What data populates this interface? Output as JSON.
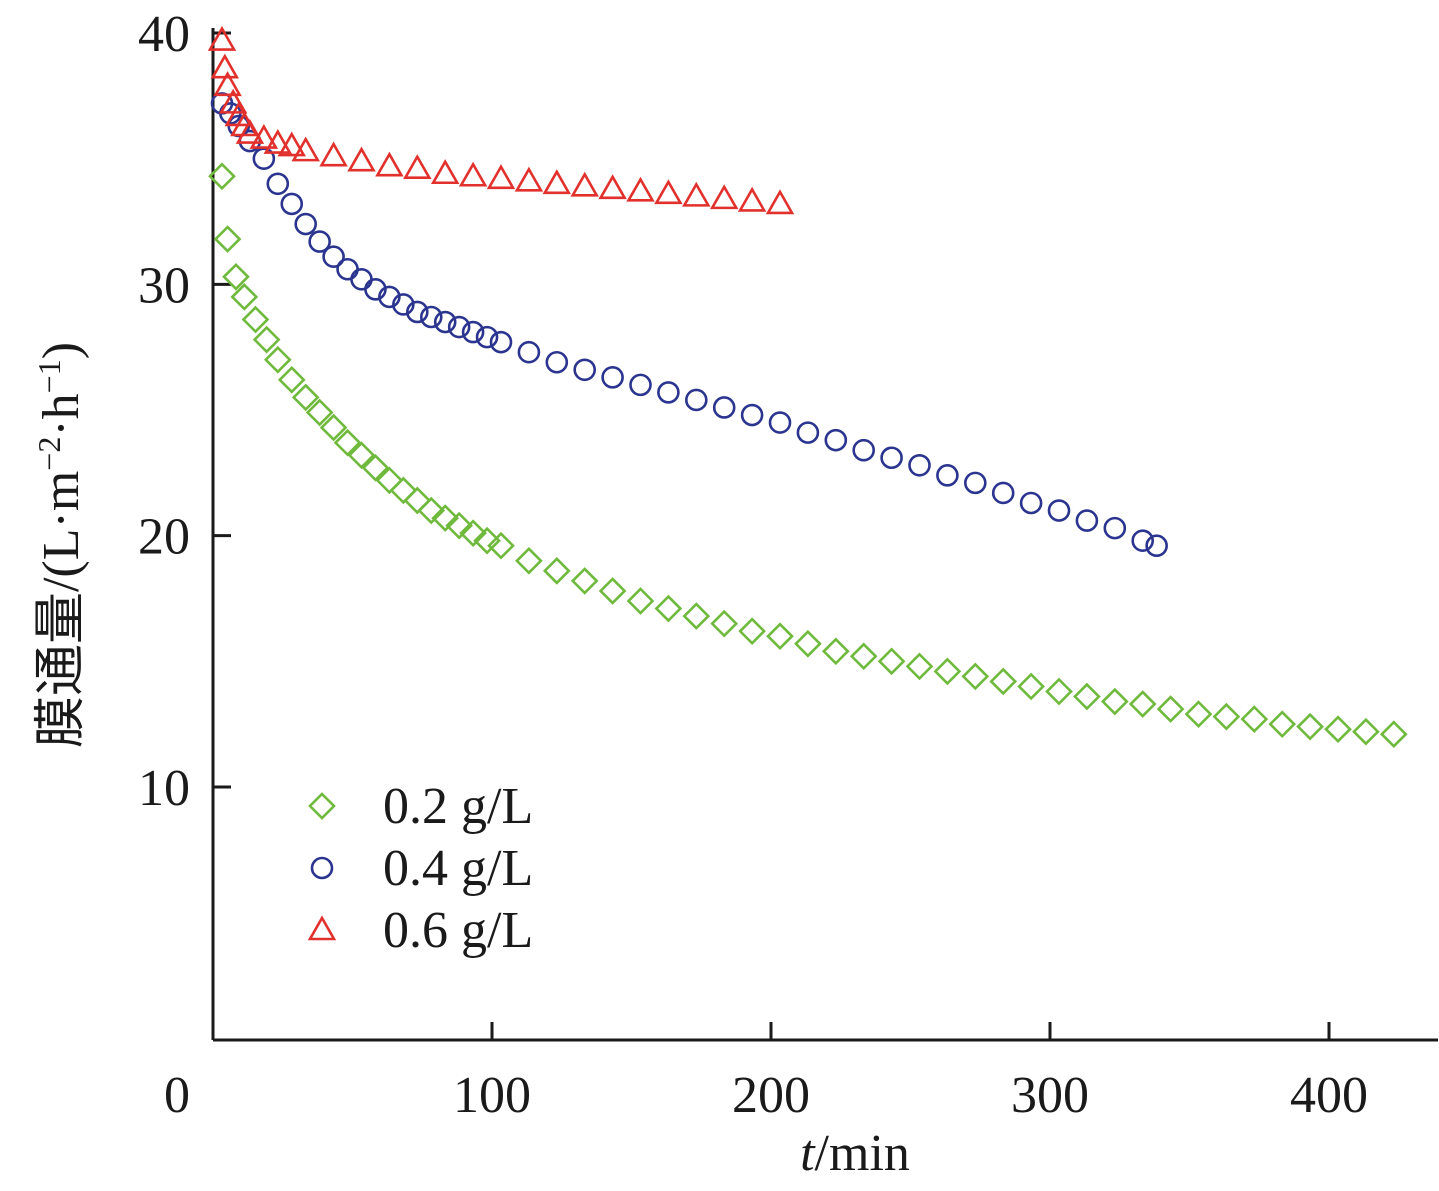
{
  "chart_data": {
    "type": "scatter",
    "title": "",
    "xlabel_italic": "t",
    "xlabel_rest": "/min",
    "ylabel_cn": "膜通量",
    "ylabel_unit_a": "/(L·m",
    "ylabel_sup1": "−2",
    "ylabel_unit_b": "·h",
    "ylabel_sup2": "−1",
    "ylabel_close": ")",
    "xlim": [
      0,
      440
    ],
    "ylim": [
      1,
      40
    ],
    "x_ticks": [
      0,
      100,
      200,
      300,
      400
    ],
    "y_ticks": [
      10,
      20,
      30,
      40
    ],
    "x_tick_labels": [
      "0",
      "100",
      "200",
      "300",
      "400"
    ],
    "y_tick_labels": [
      "10",
      "20",
      "30",
      "40"
    ],
    "legend_position": "bottom-left",
    "series": [
      {
        "name": "0.2 g/L",
        "marker": "diamond",
        "color": "#6fba3c",
        "x": [
          0,
          2,
          5,
          8,
          12,
          16,
          20,
          25,
          30,
          35,
          40,
          45,
          50,
          55,
          60,
          65,
          70,
          75,
          80,
          85,
          90,
          95,
          100,
          110,
          120,
          130,
          140,
          150,
          160,
          170,
          180,
          190,
          200,
          210,
          220,
          230,
          240,
          250,
          260,
          270,
          280,
          290,
          300,
          310,
          320,
          330,
          340,
          350,
          360,
          370,
          380,
          390,
          400,
          410,
          420
        ],
        "y": [
          34.3,
          31.8,
          30.3,
          29.5,
          28.6,
          27.8,
          27.0,
          26.2,
          25.5,
          24.9,
          24.3,
          23.7,
          23.2,
          22.7,
          22.2,
          21.8,
          21.4,
          21.0,
          20.7,
          20.4,
          20.1,
          19.8,
          19.6,
          19.0,
          18.6,
          18.2,
          17.8,
          17.4,
          17.1,
          16.8,
          16.5,
          16.2,
          16.0,
          15.7,
          15.4,
          15.2,
          15.0,
          14.8,
          14.6,
          14.4,
          14.2,
          14.0,
          13.8,
          13.6,
          13.4,
          13.3,
          13.1,
          12.9,
          12.8,
          12.7,
          12.5,
          12.4,
          12.3,
          12.2,
          12.1
        ]
      },
      {
        "name": "0.4 g/L",
        "marker": "circle",
        "color": "#2b3590",
        "x": [
          0,
          3,
          6,
          10,
          15,
          20,
          25,
          30,
          35,
          40,
          45,
          50,
          55,
          60,
          65,
          70,
          75,
          80,
          85,
          90,
          95,
          100,
          110,
          120,
          130,
          140,
          150,
          160,
          170,
          180,
          190,
          200,
          210,
          220,
          230,
          240,
          250,
          260,
          270,
          280,
          290,
          300,
          310,
          320,
          330,
          335
        ],
        "y": [
          37.2,
          36.8,
          36.3,
          35.7,
          35.0,
          34.0,
          33.2,
          32.4,
          31.7,
          31.1,
          30.6,
          30.2,
          29.8,
          29.5,
          29.2,
          28.9,
          28.7,
          28.5,
          28.3,
          28.1,
          27.9,
          27.7,
          27.3,
          26.9,
          26.6,
          26.3,
          26.0,
          25.7,
          25.4,
          25.1,
          24.8,
          24.5,
          24.1,
          23.8,
          23.4,
          23.1,
          22.8,
          22.4,
          22.1,
          21.7,
          21.3,
          21.0,
          20.6,
          20.3,
          19.8,
          19.6
        ]
      },
      {
        "name": "0.6 g/L",
        "marker": "triangle",
        "color": "#e2312c",
        "x": [
          0,
          1,
          2,
          4,
          6,
          8,
          10,
          15,
          20,
          25,
          30,
          40,
          50,
          60,
          70,
          80,
          90,
          100,
          110,
          120,
          130,
          140,
          150,
          160,
          170,
          180,
          190,
          200
        ],
        "y": [
          39.7,
          38.6,
          37.9,
          37.2,
          36.7,
          36.3,
          36.0,
          35.8,
          35.6,
          35.5,
          35.3,
          35.1,
          34.9,
          34.7,
          34.6,
          34.4,
          34.3,
          34.2,
          34.1,
          34.0,
          33.9,
          33.8,
          33.7,
          33.6,
          33.5,
          33.4,
          33.3,
          33.2
        ]
      }
    ]
  }
}
